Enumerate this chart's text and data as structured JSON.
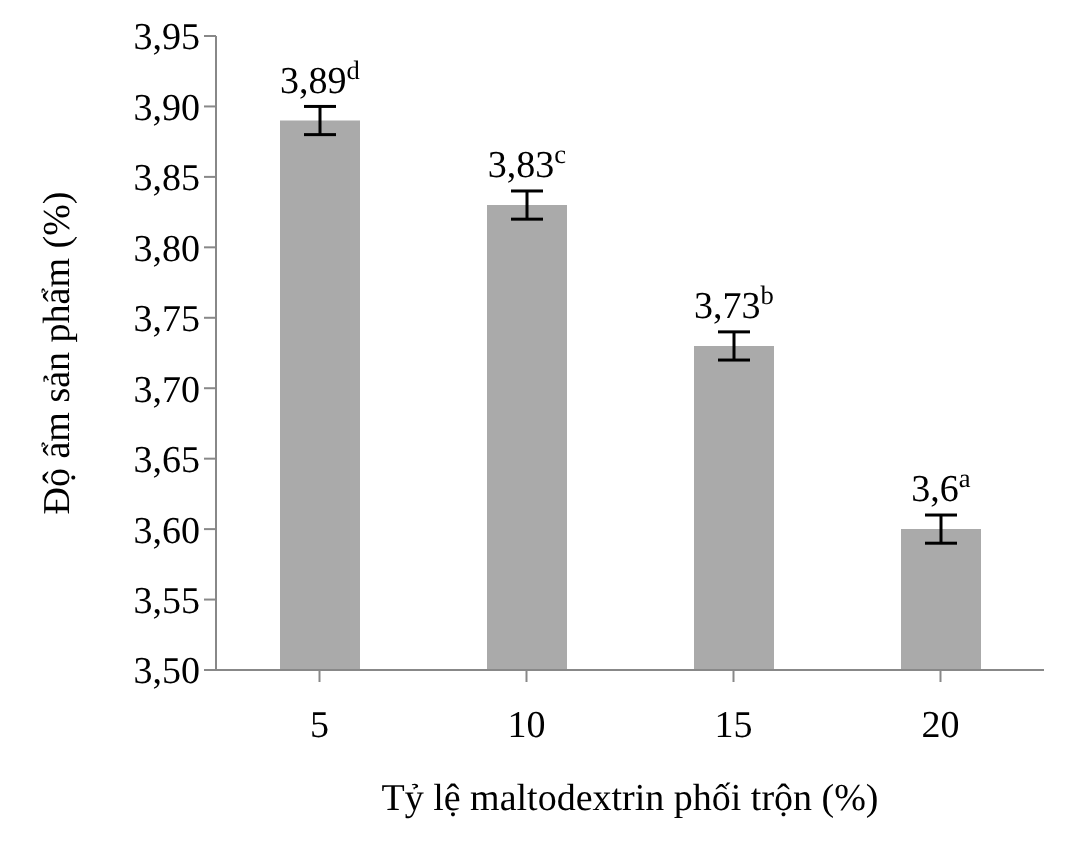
{
  "chart_data": {
    "type": "bar",
    "xlabel": "Tỷ lệ maltodextrin phối trộn (%)",
    "ylabel": "Độ ẩm sản phẩm  (%)",
    "categories": [
      "5",
      "10",
      "15",
      "20"
    ],
    "values": [
      3.89,
      3.83,
      3.73,
      3.6
    ],
    "errors": [
      0.01,
      0.01,
      0.01,
      0.01
    ],
    "value_labels": [
      "3,89$^{d}$",
      "3,83$^{c}$",
      "3,73$^{b}$",
      "3,6$^{a}$"
    ],
    "color": "#aaaaaa",
    "ylim": [
      3.5,
      3.95
    ],
    "yticks": [
      {
        "value": 3.5,
        "label": "3,50"
      },
      {
        "value": 3.55,
        "label": "3,55"
      },
      {
        "value": 3.6,
        "label": "3,60"
      },
      {
        "value": 3.65,
        "label": "3,65"
      },
      {
        "value": 3.7,
        "label": "3,70"
      },
      {
        "value": 3.75,
        "label": "3,75"
      },
      {
        "value": 3.8,
        "label": "3,80"
      },
      {
        "value": 3.85,
        "label": "3,85"
      },
      {
        "value": 3.9,
        "label": "3,90"
      },
      {
        "value": 3.95,
        "label": "3,95"
      }
    ]
  }
}
